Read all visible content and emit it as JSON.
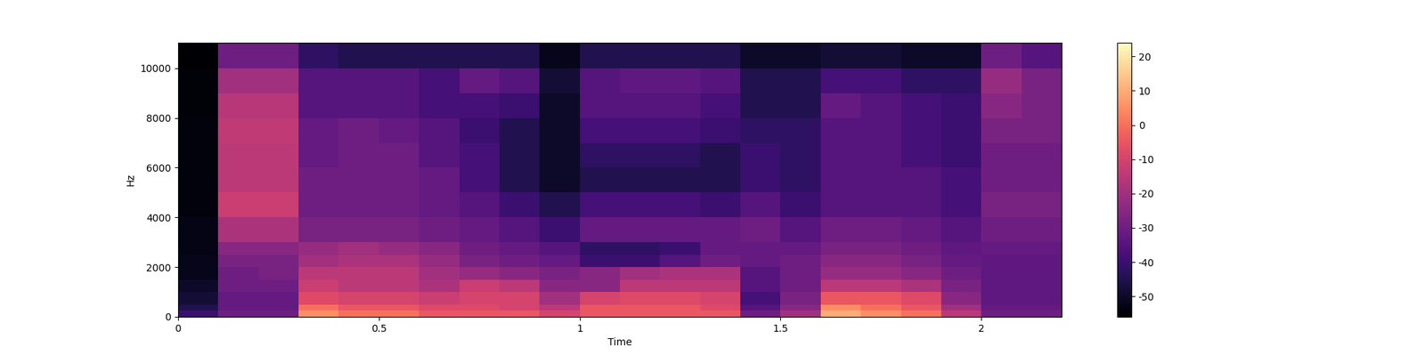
{
  "chart_data": {
    "type": "spectrogram",
    "x_label": "Time",
    "y_label": "Hz",
    "xlim": [
      0,
      2.2
    ],
    "xticks": [
      0,
      0.5,
      1,
      1.5,
      2
    ],
    "ylim": [
      0,
      11025
    ],
    "yticks": [
      0,
      2000,
      4000,
      6000,
      8000,
      10000
    ],
    "x_edges": [
      0,
      0.1,
      0.2,
      0.3,
      0.4,
      0.5,
      0.6,
      0.7,
      0.8,
      0.9,
      1.0,
      1.1,
      1.2,
      1.3,
      1.4,
      1.5,
      1.6,
      1.7,
      1.8,
      1.9,
      2.0,
      2.1,
      2.2
    ],
    "y_edges": [
      0,
      250,
      500,
      1000,
      1500,
      2000,
      2500,
      3000,
      4000,
      5000,
      6000,
      7000,
      8000,
      9000,
      10000,
      11025
    ],
    "cells": [
      [
        -40,
        -30,
        -30,
        5,
        0,
        0,
        -5,
        -5,
        -5,
        -10,
        -5,
        -5,
        -5,
        -5,
        -30,
        -20,
        10,
        5,
        0,
        -15,
        -30,
        -30
      ],
      [
        -45,
        -32,
        -32,
        0,
        -5,
        -5,
        -8,
        -8,
        -10,
        -15,
        -5,
        -5,
        -5,
        -8,
        -35,
        -25,
        5,
        0,
        -5,
        -20,
        -32,
        -32
      ],
      [
        -48,
        -32,
        -32,
        -8,
        -10,
        -10,
        -12,
        -10,
        -10,
        -20,
        -10,
        -8,
        -8,
        -10,
        -38,
        -28,
        -5,
        -5,
        -8,
        -25,
        -33,
        -33
      ],
      [
        -50,
        -30,
        -30,
        -12,
        -15,
        -15,
        -18,
        -12,
        -15,
        -25,
        -25,
        -15,
        -15,
        -15,
        -35,
        -30,
        -15,
        -15,
        -18,
        -28,
        -33,
        -33
      ],
      [
        -52,
        -30,
        -28,
        -15,
        -15,
        -15,
        -20,
        -22,
        -25,
        -28,
        -25,
        -20,
        -18,
        -18,
        -35,
        -30,
        -22,
        -22,
        -25,
        -30,
        -33,
        -33
      ],
      [
        -52,
        -28,
        -28,
        -20,
        -18,
        -18,
        -22,
        -28,
        -30,
        -32,
        -40,
        -40,
        -35,
        -30,
        -32,
        -30,
        -25,
        -25,
        -28,
        -32,
        -33,
        -33
      ],
      [
        -53,
        -25,
        -25,
        -22,
        -20,
        -22,
        -25,
        -30,
        -32,
        -35,
        -42,
        -42,
        -40,
        -32,
        -32,
        -32,
        -28,
        -28,
        -30,
        -33,
        -32,
        -32
      ],
      [
        -53,
        -18,
        -18,
        -28,
        -28,
        -28,
        -30,
        -32,
        -35,
        -40,
        -32,
        -32,
        -32,
        -32,
        -30,
        -35,
        -30,
        -30,
        -32,
        -35,
        -30,
        -30
      ],
      [
        -54,
        -12,
        -12,
        -30,
        -30,
        -30,
        -32,
        -35,
        -40,
        -45,
        -38,
        -38,
        -38,
        -40,
        -35,
        -40,
        -35,
        -35,
        -35,
        -38,
        -28,
        -28
      ],
      [
        -54,
        -15,
        -15,
        -30,
        -30,
        -30,
        -32,
        -38,
        -45,
        -50,
        -45,
        -45,
        -45,
        -45,
        -40,
        -42,
        -35,
        -35,
        -35,
        -38,
        -30,
        -30
      ],
      [
        -54,
        -15,
        -15,
        -32,
        -30,
        -30,
        -35,
        -38,
        -45,
        -50,
        -42,
        -42,
        -42,
        -45,
        -40,
        -42,
        -35,
        -35,
        -38,
        -40,
        -30,
        -30
      ],
      [
        -54,
        -14,
        -14,
        -32,
        -30,
        -32,
        -35,
        -40,
        -45,
        -50,
        -38,
        -38,
        -38,
        -40,
        -42,
        -42,
        -35,
        -35,
        -38,
        -40,
        -28,
        -28
      ],
      [
        -55,
        -16,
        -16,
        -35,
        -35,
        -35,
        -38,
        -38,
        -40,
        -50,
        -35,
        -35,
        -35,
        -38,
        -45,
        -45,
        -32,
        -35,
        -38,
        -40,
        -25,
        -28
      ],
      [
        -55,
        -20,
        -20,
        -35,
        -35,
        -35,
        -38,
        -32,
        -35,
        -48,
        -35,
        -33,
        -33,
        -35,
        -45,
        -45,
        -38,
        -38,
        -42,
        -42,
        -22,
        -28
      ],
      [
        -56,
        -30,
        -30,
        -42,
        -45,
        -45,
        -45,
        -45,
        -45,
        -52,
        -45,
        -45,
        -45,
        -45,
        -50,
        -50,
        -48,
        -48,
        -50,
        -50,
        -30,
        -35
      ]
    ],
    "colorbar_range": [
      -56,
      24
    ],
    "colorbar_ticks": [
      -50,
      -40,
      -30,
      -20,
      -10,
      0,
      10,
      20
    ]
  }
}
